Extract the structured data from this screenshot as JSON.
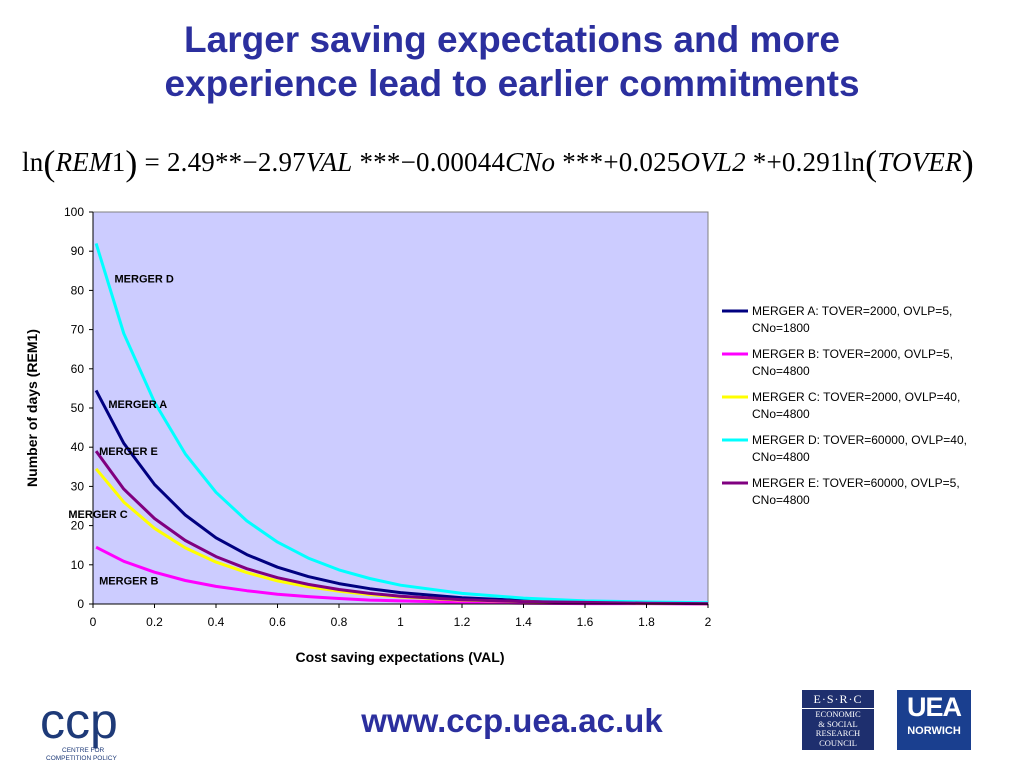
{
  "slide": {
    "title_line1": "Larger saving expectations and more",
    "title_line2": "experience lead to earlier commitments",
    "footer_url": "www.ccp.uea.ac.uk"
  },
  "equation": {
    "lhs_fn": "ln",
    "lhs_var": "REM",
    "lhs_sub": "1",
    "equals": "=",
    "constant": "2.49**",
    "minus1": "−",
    "c1": "2.97",
    "v1": "VAL",
    "s1": "***",
    "c2": "−0.00044",
    "v2": "CNo",
    "s2": "***",
    "c3": "+0.025",
    "v3": "OVL2",
    "s3": "*",
    "c4": "+0.291",
    "rhs_fn": "ln",
    "rhs_var": "TOVER"
  },
  "logos": {
    "ccp_text": "ccp",
    "ccp_sub1": "CENTRE FOR",
    "ccp_sub2": "COMPETITION POLICY",
    "esrc_line1": "E·S·R·C",
    "esrc_line2": "ECONOMIC",
    "esrc_line3": "& SOCIAL",
    "esrc_line4": "RESEARCH",
    "esrc_line5": "COUNCIL",
    "uea_line1": "UEA",
    "uea_line2": "NORWICH"
  },
  "colors": {
    "title": "#2b2f9e",
    "plot_bg": "#ccccff",
    "merger_a": "#000080",
    "merger_b": "#ff00ff",
    "merger_c": "#ffff00",
    "merger_d": "#00ffff",
    "merger_e": "#800080"
  },
  "chart_data": {
    "type": "line",
    "xlabel": "Cost saving expectations (VAL)",
    "ylabel": "Number of days (REM1)",
    "xlim": [
      0,
      2
    ],
    "ylim": [
      0,
      100
    ],
    "xticks": [
      "0",
      "0.2",
      "0.4",
      "0.6",
      "0.8",
      "1",
      "1.2",
      "1.4",
      "1.6",
      "1.8",
      "2"
    ],
    "yticks": [
      "0",
      "10",
      "20",
      "30",
      "40",
      "50",
      "60",
      "70",
      "80",
      "90",
      "100"
    ],
    "grid": false,
    "legend_position": "right",
    "x": [
      0.01,
      0.1,
      0.2,
      0.3,
      0.4,
      0.5,
      0.6,
      0.7,
      0.8,
      0.9,
      1.0,
      1.2,
      1.4,
      1.6,
      1.8,
      2.0
    ],
    "series": [
      {
        "name": "MERGER A: TOVER=2000, OVLP=5, CNo=1800",
        "color": "#000080",
        "label": "MERGER A",
        "values": [
          54.5,
          41.0,
          30.5,
          22.7,
          16.9,
          12.6,
          9.4,
          7.0,
          5.2,
          3.9,
          2.9,
          1.6,
          0.9,
          0.5,
          0.3,
          0.2
        ]
      },
      {
        "name": "MERGER B: TOVER=2000, OVLP=5, CNo=4800",
        "color": "#ff00ff",
        "label": "MERGER B",
        "values": [
          14.5,
          10.9,
          8.1,
          6.0,
          4.5,
          3.4,
          2.5,
          1.9,
          1.4,
          1.0,
          0.8,
          0.4,
          0.2,
          0.1,
          0.1,
          0.0
        ]
      },
      {
        "name": "MERGER C: TOVER=2000, OVLP=40, CNo=4800",
        "color": "#ffff00",
        "label": "MERGER C",
        "values": [
          34.5,
          26.0,
          19.3,
          14.3,
          10.7,
          8.0,
          5.9,
          4.4,
          3.3,
          2.4,
          1.8,
          1.0,
          0.6,
          0.3,
          0.2,
          0.1
        ]
      },
      {
        "name": "MERGER D: TOVER=60000, OVLP=40, CNo=4800",
        "color": "#00ffff",
        "label": "MERGER D",
        "values": [
          92.0,
          69.0,
          51.5,
          38.3,
          28.5,
          21.2,
          15.8,
          11.7,
          8.7,
          6.5,
          4.8,
          2.7,
          1.5,
          0.8,
          0.5,
          0.3
        ]
      },
      {
        "name": "MERGER E: TOVER=60000, OVLP=5, CNo=4800",
        "color": "#800080",
        "label": "MERGER E",
        "values": [
          39.0,
          29.3,
          21.8,
          16.2,
          12.1,
          9.0,
          6.7,
          5.0,
          3.7,
          2.7,
          2.0,
          1.1,
          0.6,
          0.4,
          0.2,
          0.1
        ]
      }
    ],
    "annotations": [
      {
        "text": "MERGER D",
        "x": 0.07,
        "y": 82
      },
      {
        "text": "MERGER A",
        "x": 0.05,
        "y": 50
      },
      {
        "text": "MERGER E",
        "x": 0.02,
        "y": 38
      },
      {
        "text": "MERGER C",
        "x": -0.08,
        "y": 22
      },
      {
        "text": "MERGER B",
        "x": 0.02,
        "y": 5
      }
    ]
  }
}
